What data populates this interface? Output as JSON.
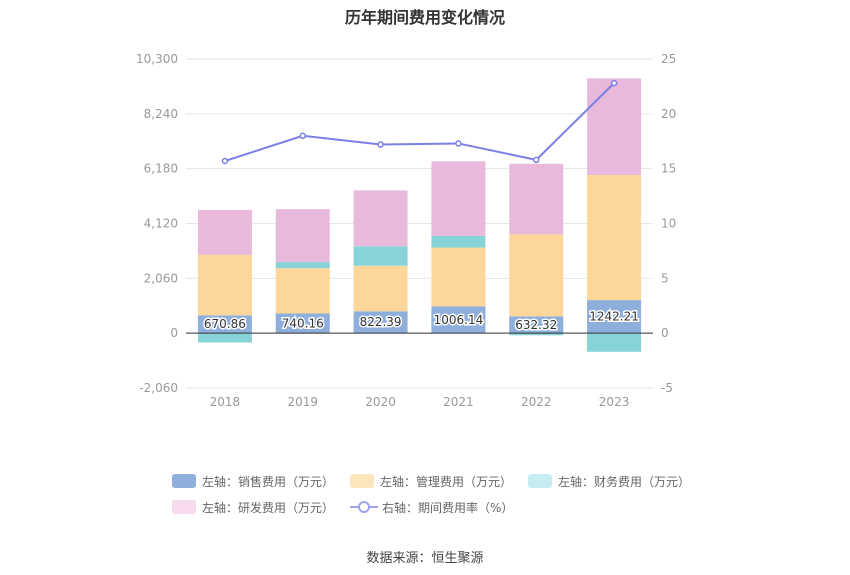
{
  "chart_data": {
    "type": "bar",
    "title": "历年期间费用变化情况",
    "categories": [
      "2018",
      "2019",
      "2020",
      "2021",
      "2022",
      "2023"
    ],
    "series": [
      {
        "name": "左轴：销售费用（万元）",
        "axis": "left",
        "color": "#8EAEDC",
        "values": [
          670.86,
          740.16,
          822.39,
          1006.14,
          632.32,
          1242.21
        ]
      },
      {
        "name": "左轴：管理费用（万元）",
        "axis": "left",
        "color": "#FDD799",
        "values": [
          2270,
          1700,
          1710,
          2210,
          3080,
          4700
        ]
      },
      {
        "name": "左轴：财务费用（万元）",
        "axis": "left",
        "color": "#86D3D8",
        "values": [
          -350,
          230,
          730,
          440,
          -80,
          -700
        ]
      },
      {
        "name": "左轴：研发费用（万元）",
        "axis": "left",
        "color": "#E8B9DA",
        "values": [
          1690,
          1990,
          2100,
          2800,
          2650,
          3630
        ]
      },
      {
        "name": "右轴：期间费用率（%）",
        "axis": "right",
        "type": "line",
        "color": "#7B7FE6",
        "values": [
          15.7,
          18.0,
          17.2,
          17.3,
          15.8,
          22.8
        ]
      }
    ],
    "left_axis": {
      "ticks": [
        "-2,060",
        "0",
        "2,060",
        "4,120",
        "6,180",
        "8,240",
        "10,300"
      ],
      "values": [
        -2060,
        0,
        2060,
        4120,
        6180,
        8240,
        10300
      ],
      "min": -2060,
      "max": 10300
    },
    "right_axis": {
      "ticks": [
        "-5",
        "0",
        "5",
        "10",
        "15",
        "20",
        "25"
      ],
      "values": [
        -5,
        0,
        5,
        10,
        15,
        20,
        25
      ],
      "min": -5,
      "max": 25
    },
    "data_labels": [
      "670.86",
      "740.16",
      "822.39",
      "1006.14",
      "632.32",
      "1242.21"
    ]
  },
  "legend": [
    {
      "label": "左轴：销售费用（万元）",
      "color": "#8EAEDC"
    },
    {
      "label": "左轴：管理费用（万元）",
      "color": "#FDD799"
    },
    {
      "label": "左轴：财务费用（万元）",
      "color": "#C6EEF0"
    },
    {
      "label": "左轴：研发费用（万元）",
      "color": "#F6DCEE"
    },
    {
      "label": "右轴：期间费用率（%）",
      "color": "#7B7FE6"
    }
  ],
  "source": "数据来源：恒生聚源"
}
